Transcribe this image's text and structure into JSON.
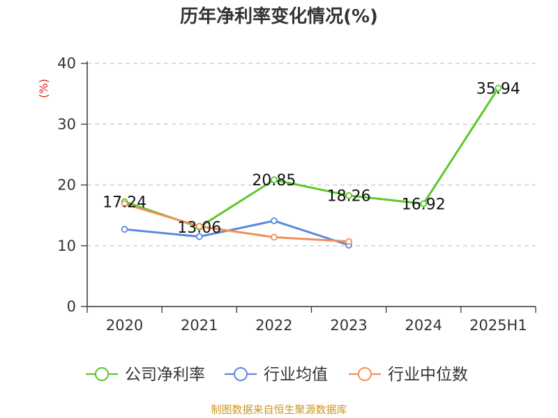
{
  "chart_data": {
    "type": "line",
    "title": "历年净利率变化情况(%)",
    "ylabel": "(%)",
    "xlabel": "",
    "categories": [
      "2020",
      "2021",
      "2022",
      "2023",
      "2024",
      "2025H1"
    ],
    "ylim": [
      0,
      40
    ],
    "yticks": [
      0,
      10,
      20,
      30,
      40
    ],
    "grid": true,
    "legend_position": "bottom",
    "series": [
      {
        "name": "公司净利率",
        "color": "#5bc72a",
        "values": [
          17.24,
          13.06,
          20.85,
          18.26,
          16.92,
          35.94
        ],
        "labels": [
          "17.24",
          "13.06",
          "20.85",
          "18.26",
          "16.92",
          "35.94"
        ]
      },
      {
        "name": "行业均值",
        "color": "#5b87dc",
        "values": [
          12.7,
          11.5,
          14.1,
          10.1,
          null,
          null
        ]
      },
      {
        "name": "行业中位数",
        "color": "#f0905a",
        "values": [
          16.9,
          13.2,
          11.4,
          10.7,
          null,
          null
        ]
      }
    ],
    "source": "制图数据来自恒生聚源数据库",
    "source_color": "#c8962a",
    "ylabel_color": "#e02020"
  }
}
